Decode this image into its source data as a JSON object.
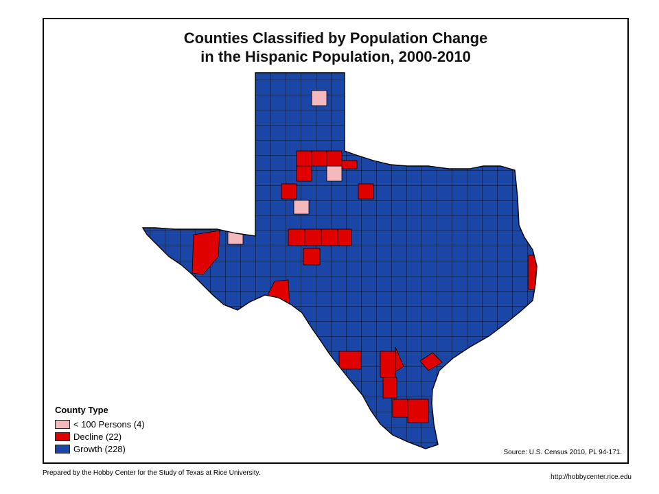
{
  "title": {
    "line1": "Counties Classified by Population Change",
    "line2": "in the Hispanic Population, 2000-2010"
  },
  "legend": {
    "title": "County Type",
    "items": [
      {
        "label": "< 100 Persons (4)",
        "color": "#f4b8bd"
      },
      {
        "label": "Decline (22)",
        "color": "#e00000"
      },
      {
        "label": "Growth (228)",
        "color": "#1a47a7"
      }
    ]
  },
  "colors": {
    "growth": "#1a47a7",
    "decline": "#e00000",
    "small": "#f4b8bd",
    "county_border": "#000000"
  },
  "source": "Source: U.S. Census 2010, PL 94-171.",
  "footer": {
    "prepared_by": "Prepared by the Hobby Center for the Study of Texas at Rice University.",
    "url": "http://hobbycenter.rice.edu"
  }
}
